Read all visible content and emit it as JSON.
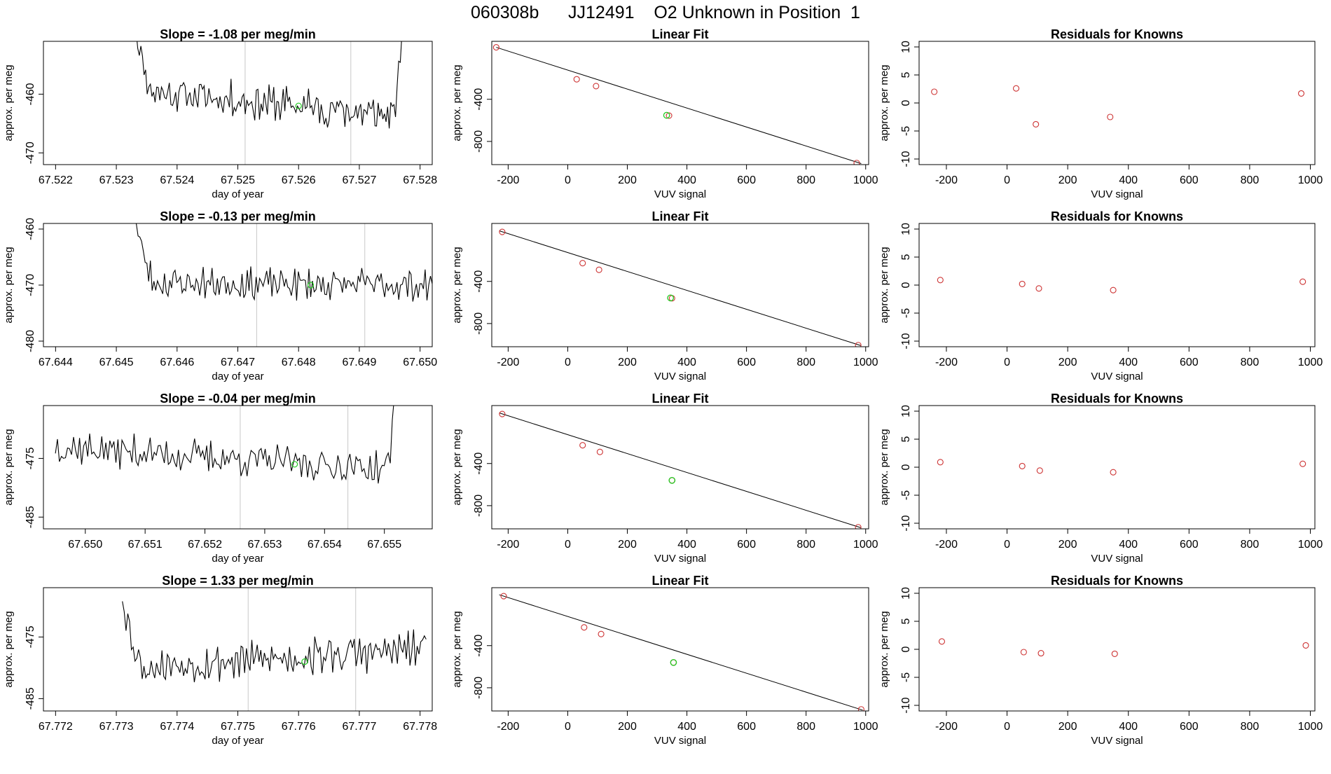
{
  "suptitle": "060308b      JJ12491    O2 Unknown in Position  1",
  "chart_data": [
    {
      "type": "line",
      "panel": "timeseries-row-1",
      "title": "Slope =  -1.08  per meg/min",
      "xlabel": "day of year",
      "ylabel": "approx. per meg",
      "xlim": [
        67.5218,
        67.5282
      ],
      "ylim": [
        -472,
        -451
      ],
      "xticks": [
        {
          "v": 67.522,
          "label": "67.522"
        },
        {
          "v": 67.523,
          "label": "67.523"
        },
        {
          "v": 67.524,
          "label": "67.524"
        },
        {
          "v": 67.525,
          "label": "67.525"
        },
        {
          "v": 67.526,
          "label": "67.526"
        },
        {
          "v": 67.527,
          "label": "67.527"
        },
        {
          "v": 67.528,
          "label": "67.528"
        }
      ],
      "yticks": [
        {
          "v": -460,
          "label": "-460"
        },
        {
          "v": -470,
          "label": "-470"
        }
      ],
      "vlines": [
        67.52512,
        67.52686
      ],
      "series_start": 67.5233,
      "series_end": 67.5277,
      "mean": -461.5,
      "noise": 2.6,
      "trend": -4.5,
      "start_rise": 12,
      "end_rise": 15,
      "seed": 11,
      "highlight": {
        "x": 67.526,
        "y": -462
      }
    },
    {
      "type": "scatter",
      "panel": "fit-row-1",
      "title": "Linear Fit",
      "xlabel": "VUV signal",
      "ylabel": "approx. per meg",
      "xlim": [
        -255,
        1010
      ],
      "ylim": [
        -1020,
        150
      ],
      "xticks": [
        {
          "v": -200,
          "label": "-200"
        },
        {
          "v": 0,
          "label": "0"
        },
        {
          "v": 200,
          "label": "200"
        },
        {
          "v": 400,
          "label": "400"
        },
        {
          "v": 600,
          "label": "600"
        },
        {
          "v": 800,
          "label": "800"
        },
        {
          "v": 1000,
          "label": "1000"
        }
      ],
      "yticks": [
        {
          "v": -400,
          "label": "-400"
        },
        {
          "v": -800,
          "label": "-800"
        }
      ],
      "knowns": [
        {
          "x": -240,
          "y": 93
        },
        {
          "x": 30,
          "y": -210
        },
        {
          "x": 95,
          "y": -275
        },
        {
          "x": 340,
          "y": -555
        },
        {
          "x": 970,
          "y": -1005
        }
      ],
      "unknown": {
        "x": 332,
        "y": -552
      },
      "fit_line": {
        "x1": -240,
        "y1": 93,
        "x2": 985,
        "y2": -1010
      }
    },
    {
      "type": "scatter",
      "panel": "residuals-row-1",
      "title": "Residuals for Knowns",
      "xlabel": "VUV signal",
      "ylabel": "approx. per meg",
      "xlim": [
        -290,
        1015
      ],
      "ylim": [
        -11,
        11
      ],
      "xticks": [
        {
          "v": -200,
          "label": "-200"
        },
        {
          "v": 0,
          "label": "0"
        },
        {
          "v": 200,
          "label": "200"
        },
        {
          "v": 400,
          "label": "400"
        },
        {
          "v": 600,
          "label": "600"
        },
        {
          "v": 800,
          "label": "800"
        },
        {
          "v": 1000,
          "label": "1000"
        }
      ],
      "yticks": [
        {
          "v": 10,
          "label": "10"
        },
        {
          "v": 5,
          "label": "5"
        },
        {
          "v": 0,
          "label": "0"
        },
        {
          "v": -5,
          "label": "-5"
        },
        {
          "v": -10,
          "label": "-10"
        }
      ],
      "points": [
        {
          "x": -240,
          "y": 2.0
        },
        {
          "x": 30,
          "y": 2.6
        },
        {
          "x": 95,
          "y": -3.8
        },
        {
          "x": 340,
          "y": -2.5
        },
        {
          "x": 970,
          "y": 1.7
        }
      ]
    },
    {
      "type": "line",
      "panel": "timeseries-row-2",
      "title": "Slope =  -0.13  per meg/min",
      "xlabel": "day of year",
      "ylabel": "approx. per meg",
      "xlim": [
        67.6438,
        67.6502
      ],
      "ylim": [
        -481,
        -459
      ],
      "xticks": [
        {
          "v": 67.644,
          "label": "67.644"
        },
        {
          "v": 67.645,
          "label": "67.645"
        },
        {
          "v": 67.646,
          "label": "67.646"
        },
        {
          "v": 67.647,
          "label": "67.647"
        },
        {
          "v": 67.648,
          "label": "67.648"
        },
        {
          "v": 67.649,
          "label": "67.649"
        },
        {
          "v": 67.65,
          "label": "67.650"
        }
      ],
      "yticks": [
        {
          "v": -460,
          "label": "-460"
        },
        {
          "v": -470,
          "label": "-470"
        },
        {
          "v": -480,
          "label": "-480"
        }
      ],
      "vlines": [
        67.64731,
        67.64909
      ],
      "series_start": 67.6453,
      "series_end": 67.6502,
      "mean": -469.8,
      "noise": 2.3,
      "trend": -0.5,
      "start_rise": 12,
      "end_rise": 0,
      "seed": 23,
      "highlight": {
        "x": 67.6482,
        "y": -470
      }
    },
    {
      "type": "scatter",
      "panel": "fit-row-2",
      "title": "Linear Fit",
      "xlabel": "VUV signal",
      "ylabel": "approx. per meg",
      "xlim": [
        -255,
        1010
      ],
      "ylim": [
        -1020,
        150
      ],
      "xticks": [
        {
          "v": -200,
          "label": "-200"
        },
        {
          "v": 0,
          "label": "0"
        },
        {
          "v": 200,
          "label": "200"
        },
        {
          "v": 400,
          "label": "400"
        },
        {
          "v": 600,
          "label": "600"
        },
        {
          "v": 800,
          "label": "800"
        },
        {
          "v": 1000,
          "label": "1000"
        }
      ],
      "yticks": [
        {
          "v": -400,
          "label": "-400"
        },
        {
          "v": -800,
          "label": "-800"
        }
      ],
      "knowns": [
        {
          "x": -220,
          "y": 70
        },
        {
          "x": 50,
          "y": -227
        },
        {
          "x": 105,
          "y": -290
        },
        {
          "x": 350,
          "y": -560
        },
        {
          "x": 975,
          "y": -1005
        }
      ],
      "unknown": {
        "x": 345,
        "y": -557
      },
      "fit_line": {
        "x1": -230,
        "y1": 80,
        "x2": 985,
        "y2": -1010
      }
    },
    {
      "type": "scatter",
      "panel": "residuals-row-2",
      "title": "Residuals for Knowns",
      "xlabel": "VUV signal",
      "ylabel": "approx. per meg",
      "xlim": [
        -290,
        1015
      ],
      "ylim": [
        -11,
        11
      ],
      "xticks": [
        {
          "v": -200,
          "label": "-200"
        },
        {
          "v": 0,
          "label": "0"
        },
        {
          "v": 200,
          "label": "200"
        },
        {
          "v": 400,
          "label": "400"
        },
        {
          "v": 600,
          "label": "600"
        },
        {
          "v": 800,
          "label": "800"
        },
        {
          "v": 1000,
          "label": "1000"
        }
      ],
      "yticks": [
        {
          "v": 10,
          "label": "10"
        },
        {
          "v": 5,
          "label": "5"
        },
        {
          "v": 0,
          "label": "0"
        },
        {
          "v": -5,
          "label": "-5"
        },
        {
          "v": -10,
          "label": "-10"
        }
      ],
      "points": [
        {
          "x": -220,
          "y": 0.9
        },
        {
          "x": 50,
          "y": 0.2
        },
        {
          "x": 105,
          "y": -0.6
        },
        {
          "x": 350,
          "y": -0.9
        },
        {
          "x": 975,
          "y": 0.6
        }
      ]
    },
    {
      "type": "line",
      "panel": "timeseries-row-3",
      "title": "Slope =  -0.04  per meg/min",
      "xlabel": "day of year",
      "ylabel": "approx. per meg",
      "xlim": [
        67.6493,
        67.6558
      ],
      "ylim": [
        -487,
        -466
      ],
      "xticks": [
        {
          "v": 67.65,
          "label": "67.650"
        },
        {
          "v": 67.651,
          "label": "67.651"
        },
        {
          "v": 67.652,
          "label": "67.652"
        },
        {
          "v": 67.653,
          "label": "67.653"
        },
        {
          "v": 67.654,
          "label": "67.654"
        },
        {
          "v": 67.655,
          "label": "67.655"
        }
      ],
      "yticks": [
        {
          "v": -475,
          "label": "-475"
        },
        {
          "v": -485,
          "label": "-485"
        }
      ],
      "vlines": [
        67.65259,
        67.65439
      ],
      "series_start": 67.6495,
      "series_end": 67.6552,
      "mean": -475,
      "noise": 2.3,
      "trend": -4,
      "start_rise": 0,
      "end_rise": 16,
      "seed": 37,
      "highlight": {
        "x": 67.6535,
        "y": -476
      }
    },
    {
      "type": "scatter",
      "panel": "fit-row-3",
      "title": "Linear Fit",
      "xlabel": "VUV signal",
      "ylabel": "approx. per meg",
      "xlim": [
        -255,
        1010
      ],
      "ylim": [
        -1020,
        150
      ],
      "xticks": [
        {
          "v": -200,
          "label": "-200"
        },
        {
          "v": 0,
          "label": "0"
        },
        {
          "v": 200,
          "label": "200"
        },
        {
          "v": 400,
          "label": "400"
        },
        {
          "v": 600,
          "label": "600"
        },
        {
          "v": 800,
          "label": "800"
        },
        {
          "v": 1000,
          "label": "1000"
        }
      ],
      "yticks": [
        {
          "v": -400,
          "label": "-400"
        },
        {
          "v": -800,
          "label": "-800"
        }
      ],
      "knowns": [
        {
          "x": -220,
          "y": 70
        },
        {
          "x": 50,
          "y": -227
        },
        {
          "x": 108,
          "y": -290
        },
        {
          "x": 350,
          "y": -560
        },
        {
          "x": 975,
          "y": -1005
        }
      ],
      "unknown": {
        "x": 350,
        "y": -560
      },
      "fit_line": {
        "x1": -230,
        "y1": 80,
        "x2": 985,
        "y2": -1010
      }
    },
    {
      "type": "scatter",
      "panel": "residuals-row-3",
      "title": "Residuals for Knowns",
      "xlabel": "VUV signal",
      "ylabel": "approx. per meg",
      "xlim": [
        -290,
        1015
      ],
      "ylim": [
        -11,
        11
      ],
      "xticks": [
        {
          "v": -200,
          "label": "-200"
        },
        {
          "v": 0,
          "label": "0"
        },
        {
          "v": 200,
          "label": "200"
        },
        {
          "v": 400,
          "label": "400"
        },
        {
          "v": 600,
          "label": "600"
        },
        {
          "v": 800,
          "label": "800"
        },
        {
          "v": 1000,
          "label": "1000"
        }
      ],
      "yticks": [
        {
          "v": 10,
          "label": "10"
        },
        {
          "v": 5,
          "label": "5"
        },
        {
          "v": 0,
          "label": "0"
        },
        {
          "v": -5,
          "label": "-5"
        },
        {
          "v": -10,
          "label": "-10"
        }
      ],
      "points": [
        {
          "x": -220,
          "y": 0.9
        },
        {
          "x": 50,
          "y": 0.2
        },
        {
          "x": 108,
          "y": -0.6
        },
        {
          "x": 350,
          "y": -0.9
        },
        {
          "x": 975,
          "y": 0.6
        }
      ]
    },
    {
      "type": "line",
      "panel": "timeseries-row-4",
      "title": "Slope =  1.33  per meg/min",
      "xlabel": "day of year",
      "ylabel": "approx. per meg",
      "xlim": [
        67.7718,
        67.7782
      ],
      "ylim": [
        -487,
        -467
      ],
      "xticks": [
        {
          "v": 67.772,
          "label": "67.772"
        },
        {
          "v": 67.773,
          "label": "67.773"
        },
        {
          "v": 67.774,
          "label": "67.774"
        },
        {
          "v": 67.775,
          "label": "67.775"
        },
        {
          "v": 67.776,
          "label": "67.776"
        },
        {
          "v": 67.777,
          "label": "67.777"
        },
        {
          "v": 67.778,
          "label": "67.778"
        }
      ],
      "yticks": [
        {
          "v": -475,
          "label": "-475"
        },
        {
          "v": -485,
          "label": "-485"
        }
      ],
      "vlines": [
        67.77517,
        67.77694
      ],
      "series_start": 67.7731,
      "series_end": 67.7781,
      "mean": -478.5,
      "noise": 2.5,
      "trend": 3,
      "start_rise": 12,
      "end_rise": 0,
      "seed": 53,
      "highlight": {
        "x": 67.7761,
        "y": -479
      }
    },
    {
      "type": "scatter",
      "panel": "fit-row-4",
      "title": "Linear Fit",
      "xlabel": "VUV signal",
      "ylabel": "approx. per meg",
      "xlim": [
        -255,
        1010
      ],
      "ylim": [
        -1020,
        150
      ],
      "xticks": [
        {
          "v": -200,
          "label": "-200"
        },
        {
          "v": 0,
          "label": "0"
        },
        {
          "v": 200,
          "label": "200"
        },
        {
          "v": 400,
          "label": "400"
        },
        {
          "v": 600,
          "label": "600"
        },
        {
          "v": 800,
          "label": "800"
        },
        {
          "v": 1000,
          "label": "1000"
        }
      ],
      "yticks": [
        {
          "v": -400,
          "label": "-400"
        },
        {
          "v": -800,
          "label": "-800"
        }
      ],
      "knowns": [
        {
          "x": -215,
          "y": 70
        },
        {
          "x": 55,
          "y": -227
        },
        {
          "x": 112,
          "y": -290
        },
        {
          "x": 355,
          "y": -560
        },
        {
          "x": 985,
          "y": -1005
        }
      ],
      "unknown": {
        "x": 355,
        "y": -560
      },
      "fit_line": {
        "x1": -230,
        "y1": 83,
        "x2": 990,
        "y2": -1012
      }
    },
    {
      "type": "scatter",
      "panel": "residuals-row-4",
      "title": "Residuals for Knowns",
      "xlabel": "VUV signal",
      "ylabel": "approx. per meg",
      "xlim": [
        -290,
        1015
      ],
      "ylim": [
        -11,
        11
      ],
      "xticks": [
        {
          "v": -200,
          "label": "-200"
        },
        {
          "v": 0,
          "label": "0"
        },
        {
          "v": 200,
          "label": "200"
        },
        {
          "v": 400,
          "label": "400"
        },
        {
          "v": 600,
          "label": "600"
        },
        {
          "v": 800,
          "label": "800"
        },
        {
          "v": 1000,
          "label": "1000"
        }
      ],
      "yticks": [
        {
          "v": 10,
          "label": "10"
        },
        {
          "v": 5,
          "label": "5"
        },
        {
          "v": 0,
          "label": "0"
        },
        {
          "v": -5,
          "label": "-5"
        },
        {
          "v": -10,
          "label": "-10"
        }
      ],
      "points": [
        {
          "x": -215,
          "y": 1.4
        },
        {
          "x": 55,
          "y": -0.5
        },
        {
          "x": 112,
          "y": -0.7
        },
        {
          "x": 355,
          "y": -0.8
        },
        {
          "x": 985,
          "y": 0.7
        }
      ]
    }
  ],
  "colors": {
    "axis": "#000000",
    "line": "#000000",
    "known": "#cd3333",
    "unknown": "#22cc22",
    "vline": "#c8c8c8"
  }
}
